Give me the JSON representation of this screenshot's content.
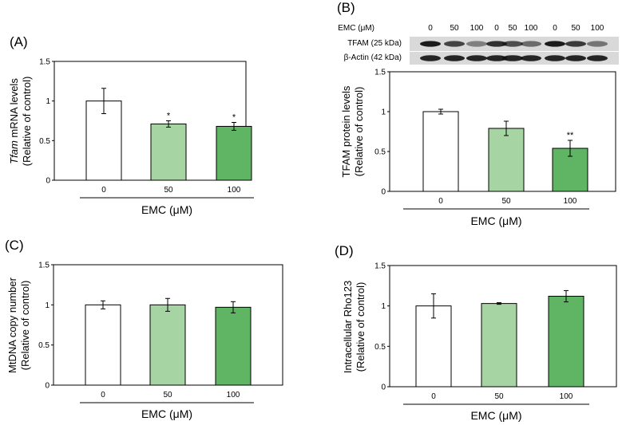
{
  "colors": {
    "control": "#ffffff",
    "low": "#a6d5a3",
    "high": "#5fb564",
    "stroke": "#000000"
  },
  "blot": {
    "emc_header": "EMC (μM)",
    "lane_doses": [
      "0",
      "50",
      "100",
      "0",
      "50",
      "100",
      "0",
      "50",
      "100"
    ],
    "row1_label": "TFAM (25 kDa)",
    "row2_label": "β-Actin (42 kDa)"
  },
  "chart_data": [
    {
      "panel": "(A)",
      "type": "bar",
      "categories": [
        "0",
        "50",
        "100"
      ],
      "values": [
        1.0,
        0.71,
        0.68
      ],
      "errors": [
        0.16,
        0.04,
        0.05
      ],
      "significance": [
        "",
        "*",
        "*"
      ],
      "ylabel_italic": "Tfam",
      "ylabel_rest": " mRNA levels",
      "ylabel_line2": "(Relative of control)",
      "xlabel": "EMC (μM)",
      "ylim": [
        0,
        1.5
      ],
      "ticks": [
        "0",
        "0.5",
        "1",
        "1.5"
      ]
    },
    {
      "panel": "(B)",
      "type": "bar",
      "categories": [
        "0",
        "50",
        "100"
      ],
      "values": [
        1.0,
        0.79,
        0.54
      ],
      "errors": [
        0.03,
        0.09,
        0.1
      ],
      "significance": [
        "",
        "",
        "**"
      ],
      "ylabel_italic": "",
      "ylabel_rest": "TFAM protein levels",
      "ylabel_line2": "(Relative of control)",
      "xlabel": "EMC (μM)",
      "ylim": [
        0,
        1.5
      ],
      "ticks": [
        "0",
        "0.5",
        "1",
        "1.5"
      ]
    },
    {
      "panel": "(C)",
      "type": "bar",
      "categories": [
        "0",
        "50",
        "100"
      ],
      "values": [
        1.0,
        1.0,
        0.97
      ],
      "errors": [
        0.05,
        0.08,
        0.07
      ],
      "significance": [
        "",
        "",
        ""
      ],
      "ylabel_italic": "",
      "ylabel_rest": "MtDNA copy number",
      "ylabel_line2": "(Relative of control)",
      "xlabel": "EMC (μM)",
      "ylim": [
        0,
        1.5
      ],
      "ticks": [
        "0",
        "0.5",
        "1",
        "1.5"
      ]
    },
    {
      "panel": "(D)",
      "type": "bar",
      "categories": [
        "0",
        "50",
        "100"
      ],
      "values": [
        1.0,
        1.03,
        1.12
      ],
      "errors": [
        0.15,
        0.01,
        0.07
      ],
      "significance": [
        "",
        "",
        ""
      ],
      "ylabel_italic": "",
      "ylabel_rest": "Intracellular Rho123",
      "ylabel_line2": "(Relative of control)",
      "xlabel": "EMC (μM)",
      "ylim": [
        0,
        1.5
      ],
      "ticks": [
        "0",
        "0.5",
        "1",
        "1.5"
      ]
    }
  ]
}
